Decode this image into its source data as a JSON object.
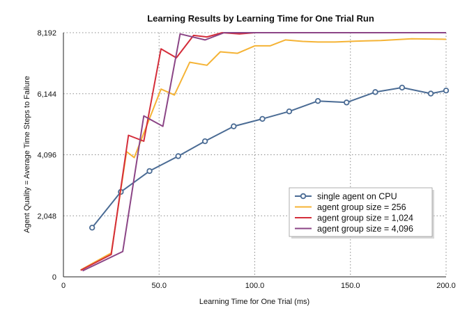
{
  "chart_data": {
    "type": "line",
    "title": "Learning Results by Learning Time for One Trial Run",
    "xlabel": "Learning Time for One Trial (ms)",
    "ylabel": "Agent Quality = Average Time Steps to Failure",
    "xlim": [
      0,
      200
    ],
    "ylim": [
      0,
      8192
    ],
    "x_ticks": [
      0,
      50,
      100,
      150,
      200
    ],
    "x_tick_labels": [
      "0",
      "50.0",
      "100.0",
      "150.0",
      "200.0"
    ],
    "y_ticks": [
      0,
      2048,
      4096,
      6144,
      8192
    ],
    "y_tick_labels": [
      "0",
      "2,048",
      "4,096",
      "6,144",
      "8,192"
    ],
    "grid": true,
    "legend_position": "bottom-right",
    "series": [
      {
        "name": "single agent on CPU",
        "color": "#4a6b94",
        "marker": "circle",
        "points": [
          [
            15,
            1650
          ],
          [
            30,
            2850
          ],
          [
            45,
            3550
          ],
          [
            60,
            4050
          ],
          [
            74,
            4550
          ],
          [
            89,
            5050
          ],
          [
            104,
            5300
          ],
          [
            118,
            5550
          ],
          [
            133,
            5900
          ],
          [
            148,
            5850
          ],
          [
            163,
            6200
          ],
          [
            177,
            6350
          ],
          [
            192,
            6150
          ],
          [
            200,
            6250
          ]
        ]
      },
      {
        "name": "agent group size = 256",
        "color": "#f5b335",
        "marker": "none",
        "points": [
          [
            9,
            230
          ],
          [
            25,
            800
          ],
          [
            33,
            4200
          ],
          [
            37,
            4000
          ],
          [
            51,
            6300
          ],
          [
            58,
            6100
          ],
          [
            66,
            7200
          ],
          [
            75,
            7100
          ],
          [
            82,
            7550
          ],
          [
            91,
            7500
          ],
          [
            100,
            7750
          ],
          [
            108,
            7750
          ],
          [
            116,
            7950
          ],
          [
            125,
            7900
          ],
          [
            133,
            7880
          ],
          [
            142,
            7880
          ],
          [
            150,
            7900
          ],
          [
            158,
            7920
          ],
          [
            166,
            7930
          ],
          [
            182,
            7990
          ],
          [
            200,
            7970
          ]
        ]
      },
      {
        "name": "agent group size = 1,024",
        "color": "#d42d3a",
        "marker": "none",
        "points": [
          [
            9,
            220
          ],
          [
            25,
            750
          ],
          [
            34,
            4750
          ],
          [
            42,
            4550
          ],
          [
            51,
            7650
          ],
          [
            59,
            7350
          ],
          [
            68,
            8100
          ],
          [
            75,
            8050
          ],
          [
            83,
            8192
          ],
          [
            92,
            8150
          ],
          [
            100,
            8192
          ],
          [
            108,
            8192
          ],
          [
            133,
            8192
          ],
          [
            166,
            8192
          ],
          [
            200,
            8192
          ]
        ]
      },
      {
        "name": "agent group size = 4,096",
        "color": "#8b4586",
        "marker": "none",
        "points": [
          [
            10,
            200
          ],
          [
            31,
            850
          ],
          [
            42,
            5400
          ],
          [
            52,
            5050
          ],
          [
            61,
            8150
          ],
          [
            74,
            7950
          ],
          [
            84,
            8192
          ],
          [
            100,
            8192
          ],
          [
            133,
            8192
          ],
          [
            166,
            8192
          ],
          [
            200,
            8192
          ]
        ]
      }
    ]
  }
}
